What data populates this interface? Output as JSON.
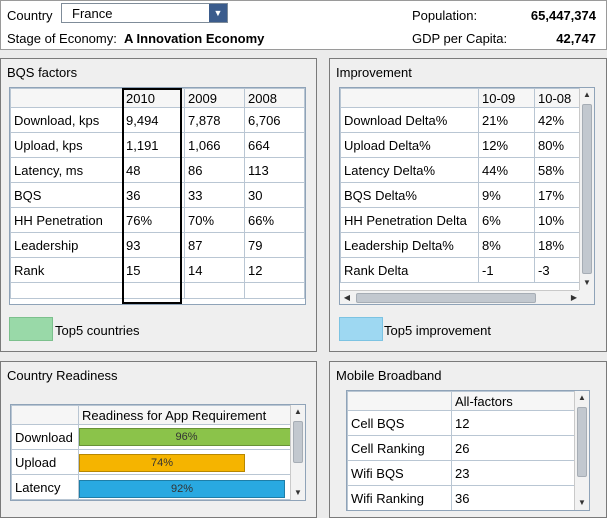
{
  "header": {
    "country_label": "Country",
    "country_value": "France",
    "stage_label": "Stage of Economy:",
    "stage_value": "A Innovation Economy",
    "population_label": "Population:",
    "population_value": "65,447,374",
    "gdp_label": "GDP per Capita:",
    "gdp_value": "42,747"
  },
  "bqs": {
    "title": "BQS factors",
    "columns": [
      "",
      "2010",
      "2009",
      "2008"
    ],
    "rows": [
      [
        "Download, kps",
        "9,494",
        "7,878",
        "6,706"
      ],
      [
        "Upload, kps",
        "1,191",
        "1,066",
        "664"
      ],
      [
        "Latency, ms",
        "48",
        "86",
        "113"
      ],
      [
        "BQS",
        "36",
        "33",
        "30"
      ],
      [
        "HH Penetration",
        "76%",
        "70%",
        "66%"
      ],
      [
        "Leadership",
        "93",
        "87",
        "79"
      ],
      [
        "Rank",
        "15",
        "14",
        "12"
      ]
    ],
    "legend_label": "Top5 countries",
    "legend_color": "#99d9a8"
  },
  "improvement": {
    "title": "Improvement",
    "columns": [
      "",
      "10-09",
      "10-08"
    ],
    "rows": [
      [
        "Download Delta%",
        "21%",
        "42%"
      ],
      [
        "Upload Delta%",
        "12%",
        "80%"
      ],
      [
        "Latency Delta%",
        "44%",
        "58%"
      ],
      [
        "BQS Delta%",
        "9%",
        "17%"
      ],
      [
        "HH Penetration Delta",
        "6%",
        "10%"
      ],
      [
        "Leadership Delta%",
        "8%",
        "18%"
      ],
      [
        "Rank Delta",
        "-1",
        "-3"
      ]
    ],
    "legend_label": "Top5 improvement",
    "legend_color": "#9ed8f2"
  },
  "readiness": {
    "title": "Country Readiness",
    "column": "Readiness for App Requirement",
    "rows": [
      {
        "label": "Download",
        "value_text": "96%",
        "value": 0.96,
        "color": "#8bc34a"
      },
      {
        "label": "Upload",
        "value_text": "74%",
        "value": 0.74,
        "color": "#f5b400"
      },
      {
        "label": "Latency",
        "value_text": "92%",
        "value": 0.92,
        "color": "#29a9e1"
      }
    ]
  },
  "mobile": {
    "title": "Mobile Broadband",
    "column": "All-factors",
    "rows": [
      [
        "Cell BQS",
        "12"
      ],
      [
        "Cell Ranking",
        "26"
      ],
      [
        "Wifi BQS",
        "23"
      ],
      [
        "Wifi Ranking",
        "36"
      ]
    ]
  },
  "icons": {
    "dropdown": "chevron-down-icon",
    "scroll_up": "arrow-up-icon",
    "scroll_down": "arrow-down-icon",
    "scroll_left": "arrow-left-icon",
    "scroll_right": "arrow-right-icon"
  }
}
